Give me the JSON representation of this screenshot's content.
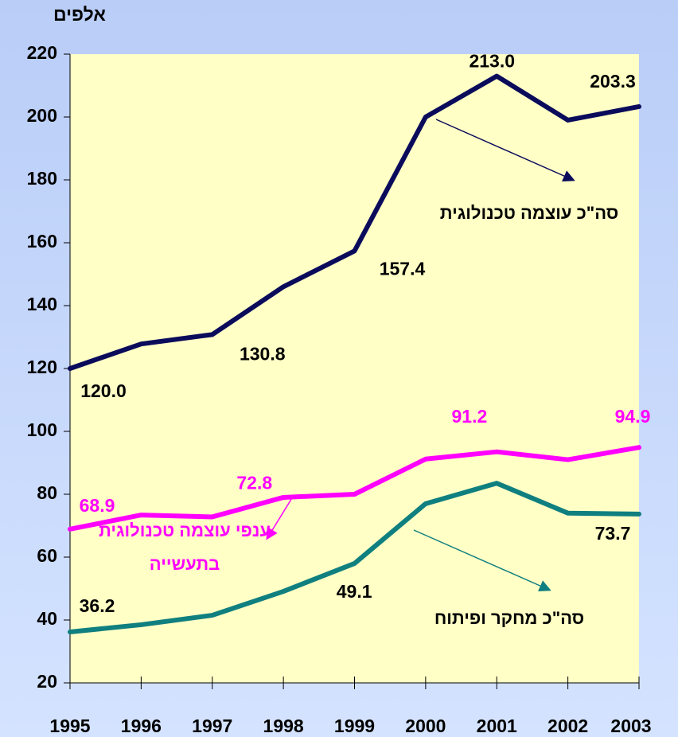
{
  "chart_data": {
    "type": "line",
    "y_label": "אלפים",
    "x": [
      1995,
      1996,
      1997,
      1998,
      1999,
      2000,
      2001,
      2002,
      2003
    ],
    "xlim": [
      1995,
      2003
    ],
    "xticks": [
      1995,
      1996,
      1997,
      1998,
      1999,
      2000,
      2001,
      2002,
      2003
    ],
    "ylim": [
      20,
      220
    ],
    "yticks": [
      20,
      40,
      60,
      80,
      100,
      120,
      140,
      160,
      180,
      200,
      220
    ],
    "series": [
      {
        "name": "סה\"כ עוצמה טכנולוגית",
        "color": "#0b0b5c",
        "values": [
          120.0,
          127.8,
          130.8,
          146,
          157.4,
          200,
          213.0,
          199,
          203.3
        ],
        "value_labels": [
          "120.0",
          null,
          "130.8",
          null,
          "157.4",
          null,
          "213.0",
          null,
          "203.3"
        ]
      },
      {
        "name": "ענפי עוצמה טכנולוגית בתעשייה",
        "color": "#ff00ff",
        "values": [
          68.9,
          73.4,
          72.8,
          79,
          80,
          91.2,
          93.5,
          91,
          94.9
        ],
        "value_labels": [
          "68.9",
          null,
          "72.8",
          null,
          null,
          "91.2",
          null,
          null,
          "94.9"
        ]
      },
      {
        "name": "סה\"כ מחקר ופיתוח",
        "color": "#0f7f7f",
        "values": [
          36.2,
          38.5,
          41.5,
          49.1,
          58,
          77,
          83.5,
          74,
          73.7
        ],
        "value_labels": [
          "36.2",
          null,
          null,
          "49.1",
          null,
          null,
          null,
          null,
          "73.7"
        ]
      }
    ]
  }
}
